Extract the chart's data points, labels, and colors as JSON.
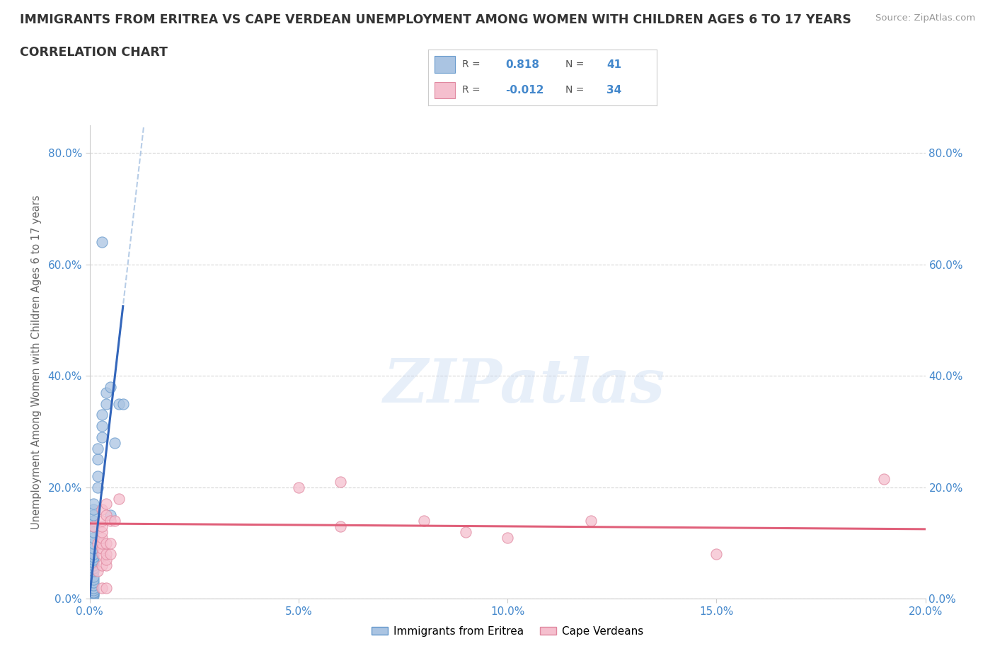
{
  "title_line1": "IMMIGRANTS FROM ERITREA VS CAPE VERDEAN UNEMPLOYMENT AMONG WOMEN WITH CHILDREN AGES 6 TO 17 YEARS",
  "title_line2": "CORRELATION CHART",
  "source": "Source: ZipAtlas.com",
  "ylabel": "Unemployment Among Women with Children Ages 6 to 17 years",
  "xlim": [
    0.0,
    0.2
  ],
  "ylim": [
    0.0,
    0.85
  ],
  "watermark": "ZIPatlas",
  "eritrea_R": 0.818,
  "eritrea_N": 41,
  "capeverde_R": -0.012,
  "capeverde_N": 34,
  "eritrea_color": "#aac4e2",
  "eritrea_edge_color": "#6699cc",
  "eritrea_line_color": "#3366bb",
  "capeverde_color": "#f5bfce",
  "capeverde_edge_color": "#e088a0",
  "capeverde_line_color": "#e0607a",
  "eritrea_scatter": [
    [
      0.001,
      0.005
    ],
    [
      0.001,
      0.008
    ],
    [
      0.001,
      0.01
    ],
    [
      0.001,
      0.012
    ],
    [
      0.001,
      0.015
    ],
    [
      0.001,
      0.02
    ],
    [
      0.001,
      0.025
    ],
    [
      0.001,
      0.03
    ],
    [
      0.001,
      0.035
    ],
    [
      0.001,
      0.04
    ],
    [
      0.001,
      0.05
    ],
    [
      0.001,
      0.055
    ],
    [
      0.001,
      0.06
    ],
    [
      0.001,
      0.065
    ],
    [
      0.001,
      0.07
    ],
    [
      0.001,
      0.075
    ],
    [
      0.001,
      0.08
    ],
    [
      0.001,
      0.09
    ],
    [
      0.001,
      0.1
    ],
    [
      0.001,
      0.11
    ],
    [
      0.001,
      0.12
    ],
    [
      0.001,
      0.13
    ],
    [
      0.001,
      0.14
    ],
    [
      0.001,
      0.15
    ],
    [
      0.001,
      0.16
    ],
    [
      0.001,
      0.17
    ],
    [
      0.002,
      0.2
    ],
    [
      0.002,
      0.22
    ],
    [
      0.002,
      0.25
    ],
    [
      0.002,
      0.27
    ],
    [
      0.003,
      0.29
    ],
    [
      0.003,
      0.31
    ],
    [
      0.003,
      0.33
    ],
    [
      0.004,
      0.35
    ],
    [
      0.004,
      0.37
    ],
    [
      0.005,
      0.38
    ],
    [
      0.005,
      0.15
    ],
    [
      0.006,
      0.28
    ],
    [
      0.007,
      0.35
    ],
    [
      0.008,
      0.35
    ],
    [
      0.003,
      0.64
    ]
  ],
  "capeverde_scatter": [
    [
      0.001,
      0.13
    ],
    [
      0.002,
      0.05
    ],
    [
      0.002,
      0.1
    ],
    [
      0.003,
      0.02
    ],
    [
      0.003,
      0.06
    ],
    [
      0.003,
      0.08
    ],
    [
      0.003,
      0.09
    ],
    [
      0.003,
      0.1
    ],
    [
      0.003,
      0.11
    ],
    [
      0.003,
      0.12
    ],
    [
      0.003,
      0.13
    ],
    [
      0.003,
      0.14
    ],
    [
      0.003,
      0.16
    ],
    [
      0.004,
      0.02
    ],
    [
      0.004,
      0.06
    ],
    [
      0.004,
      0.07
    ],
    [
      0.004,
      0.08
    ],
    [
      0.004,
      0.1
    ],
    [
      0.004,
      0.15
    ],
    [
      0.004,
      0.17
    ],
    [
      0.005,
      0.08
    ],
    [
      0.005,
      0.1
    ],
    [
      0.005,
      0.14
    ],
    [
      0.006,
      0.14
    ],
    [
      0.007,
      0.18
    ],
    [
      0.05,
      0.2
    ],
    [
      0.06,
      0.13
    ],
    [
      0.06,
      0.21
    ],
    [
      0.08,
      0.14
    ],
    [
      0.09,
      0.12
    ],
    [
      0.1,
      0.11
    ],
    [
      0.12,
      0.14
    ],
    [
      0.15,
      0.08
    ],
    [
      0.19,
      0.215
    ]
  ],
  "yticks": [
    0.0,
    0.2,
    0.4,
    0.6,
    0.8
  ],
  "ytick_labels": [
    "0.0%",
    "20.0%",
    "40.0%",
    "60.0%",
    "80.0%"
  ],
  "xticks": [
    0.0,
    0.05,
    0.1,
    0.15,
    0.2
  ],
  "xtick_labels": [
    "0.0%",
    "5.0%",
    "10.0%",
    "15.0%",
    "20.0%"
  ],
  "grid_color": "#cccccc",
  "background_color": "#ffffff",
  "title_color": "#333333",
  "axis_label_color": "#666666",
  "tick_color": "#4488cc",
  "legend_border_color": "#cccccc"
}
